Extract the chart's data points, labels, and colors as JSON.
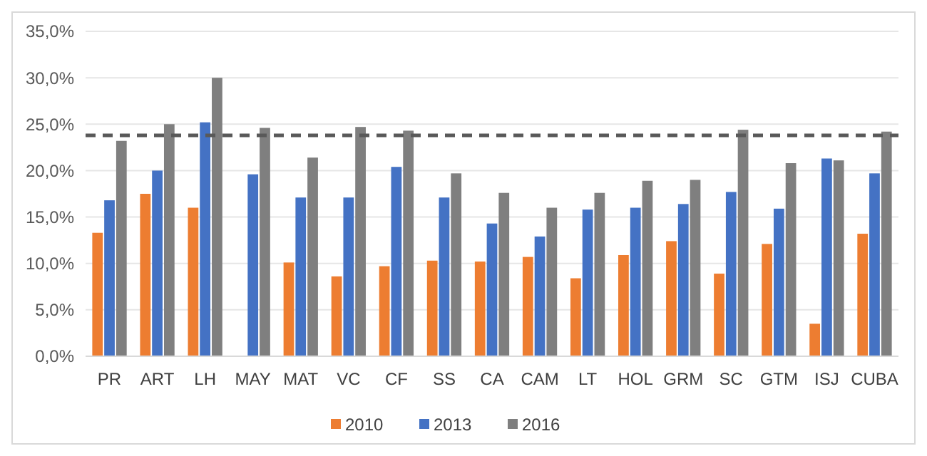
{
  "chart_data": {
    "type": "bar",
    "categories": [
      "PR",
      "ART",
      "LH",
      "MAY",
      "MAT",
      "VC",
      "CF",
      "SS",
      "CA",
      "CAM",
      "LT",
      "HOL",
      "GRM",
      "SC",
      "GTM",
      "ISJ",
      "CUBA"
    ],
    "series": [
      {
        "name": "2010",
        "color": "#ed7d31",
        "values": [
          13.3,
          17.5,
          16.0,
          null,
          10.1,
          8.6,
          9.7,
          10.3,
          10.2,
          10.7,
          8.4,
          10.9,
          12.4,
          8.9,
          12.1,
          3.5,
          13.2
        ]
      },
      {
        "name": "2013",
        "color": "#4472c4",
        "values": [
          16.8,
          20.0,
          25.2,
          19.6,
          17.1,
          17.1,
          20.4,
          17.1,
          14.3,
          12.9,
          15.8,
          16.0,
          16.4,
          17.7,
          15.9,
          21.3,
          19.7
        ]
      },
      {
        "name": "2016",
        "color": "#7f7f7f",
        "values": [
          23.2,
          25.0,
          30.0,
          24.6,
          21.4,
          24.7,
          24.3,
          19.7,
          17.6,
          16.0,
          17.6,
          18.9,
          19.0,
          24.4,
          20.8,
          21.1,
          24.2
        ]
      }
    ],
    "ylim": [
      0,
      35
    ],
    "yticks": [
      {
        "value": 0,
        "label": "0,0%"
      },
      {
        "value": 5,
        "label": "5,0%"
      },
      {
        "value": 10,
        "label": "10,0%"
      },
      {
        "value": 15,
        "label": "15,0%"
      },
      {
        "value": 20,
        "label": "20,0%"
      },
      {
        "value": 25,
        "label": "25,0%"
      },
      {
        "value": 30,
        "label": "30,0%"
      },
      {
        "value": 35,
        "label": "35,0%"
      }
    ],
    "grid": "y",
    "legend": "bottom",
    "ref_lines": [
      {
        "axis": "y",
        "value": 23.8,
        "color": "#595959",
        "line_style": "dashed"
      }
    ]
  }
}
